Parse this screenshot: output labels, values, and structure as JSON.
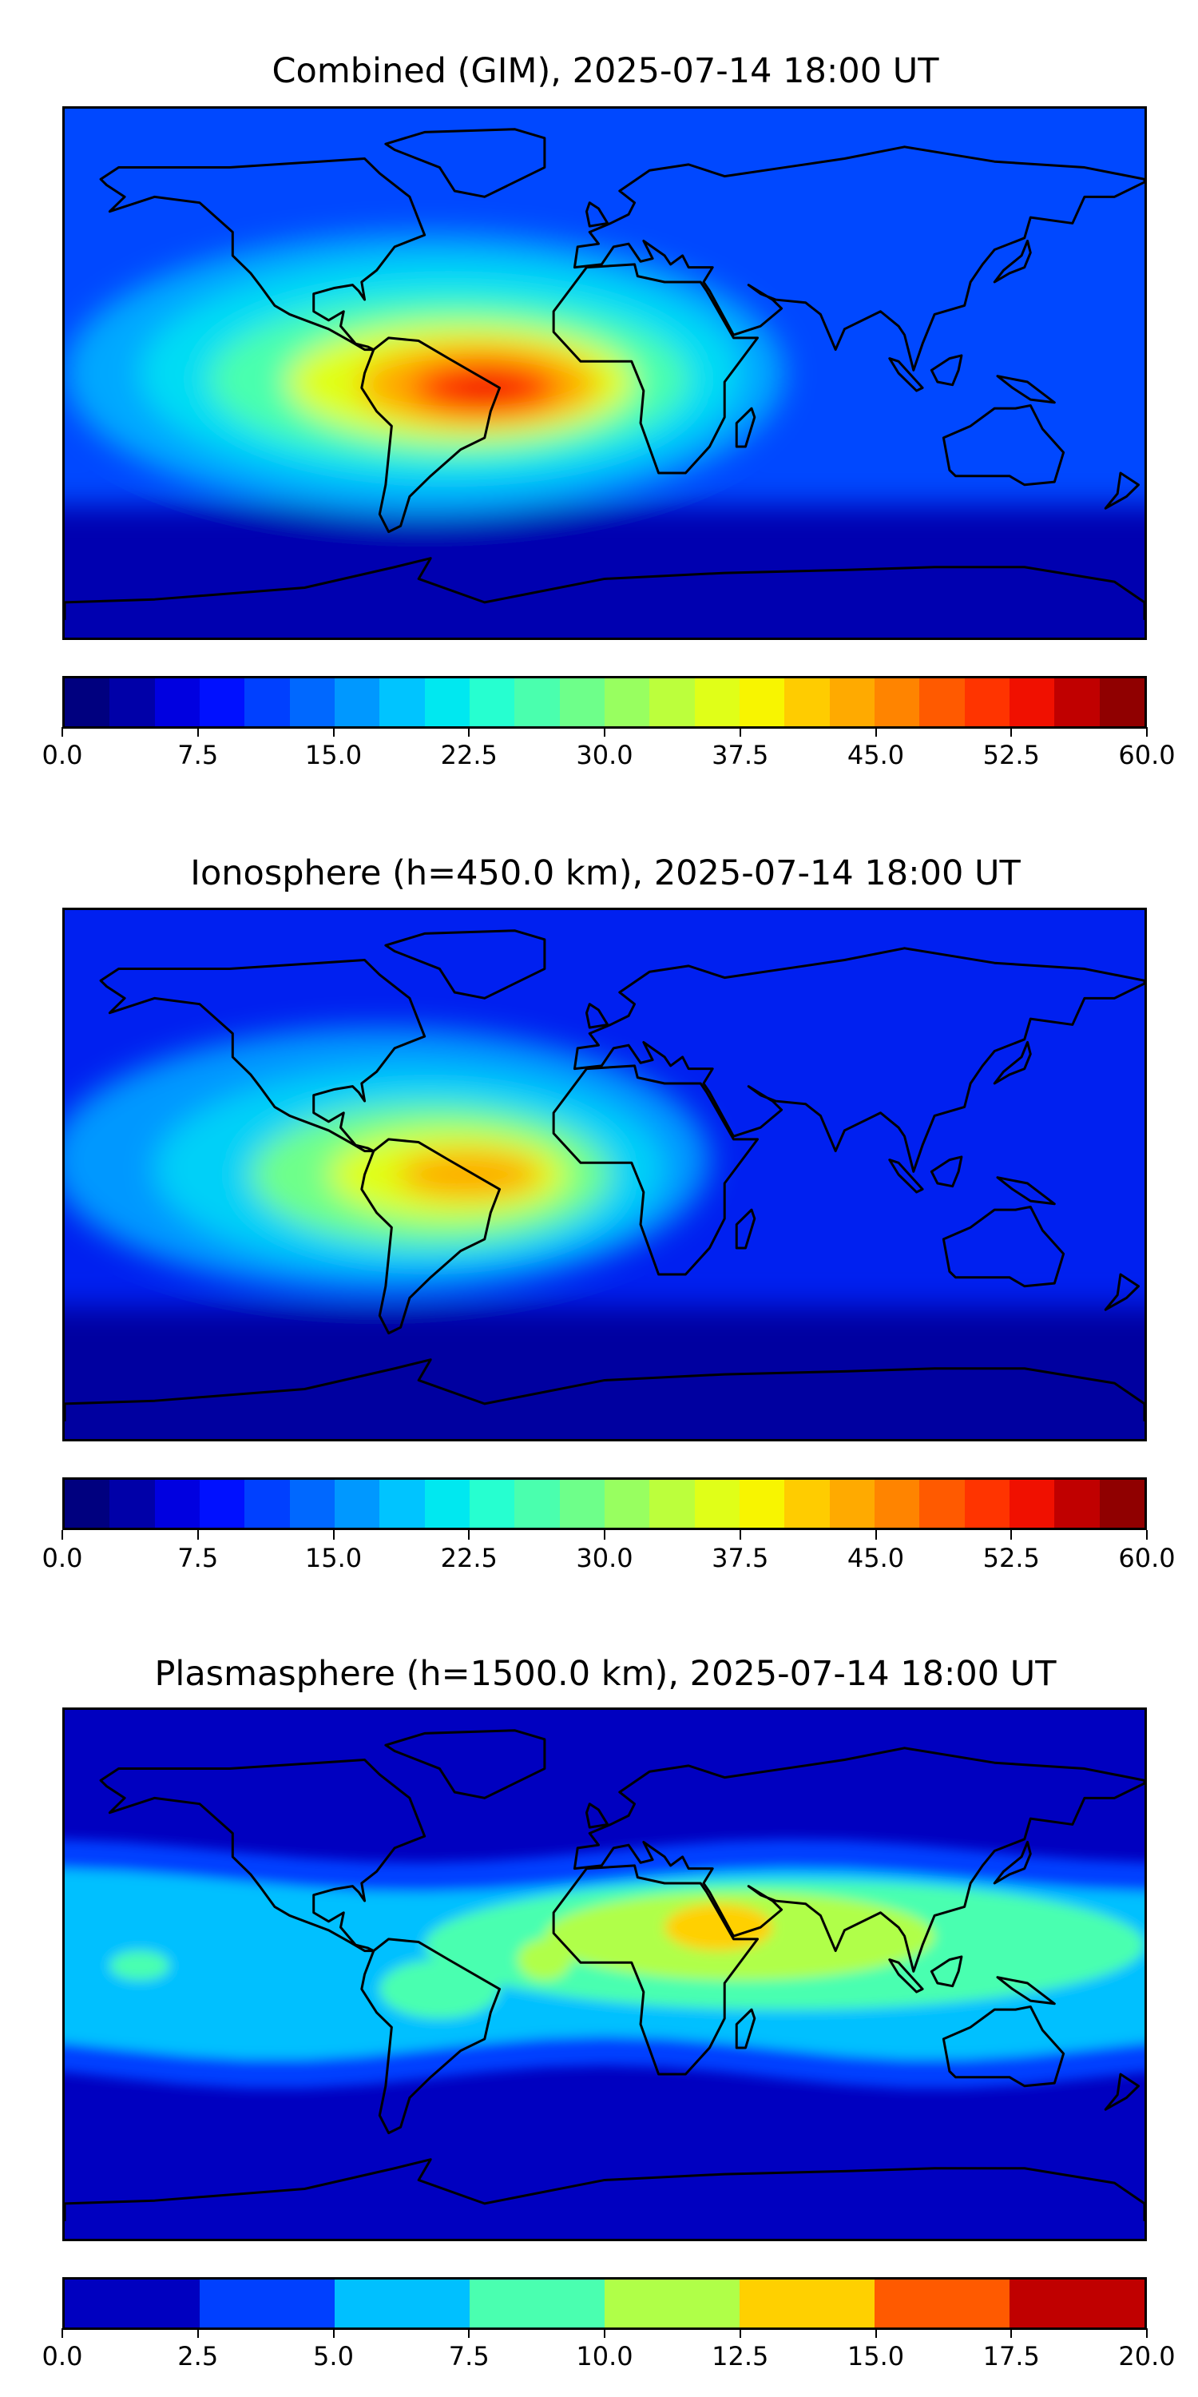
{
  "chart_data": [
    {
      "type": "heatmap",
      "title": "Combined (GIM), 2025-07-14 18:00 UT",
      "projection": "plate carree world map with coastlines",
      "lon_range": [
        -180,
        180
      ],
      "lat_range": [
        -90,
        90
      ],
      "colorbar": {
        "vmin": 0,
        "vmax": 60,
        "levels": 24,
        "ticks": [
          "0.0",
          "7.5",
          "15.0",
          "22.5",
          "30.0",
          "37.5",
          "45.0",
          "52.5",
          "60.0"
        ],
        "colors": [
          "#00007f",
          "#0000a8",
          "#0000e0",
          "#0010ff",
          "#0040ff",
          "#0068ff",
          "#0098ff",
          "#00c4ff",
          "#00e8f0",
          "#26ffd0",
          "#4affae",
          "#6eff8a",
          "#98ff60",
          "#bcff3c",
          "#e0ff18",
          "#f8f500",
          "#ffcc00",
          "#ffaa00",
          "#ff8400",
          "#ff5a00",
          "#ff3400",
          "#f01000",
          "#c00000",
          "#900000"
        ]
      },
      "field": {
        "peak_value_approx": 53,
        "peak_location": "northern Brazil / equatorial Atlantic",
        "background": "#0048ff",
        "south_band": "#0000b0",
        "blobs": [
          {
            "lon": -60,
            "lat": 0,
            "rx": 120,
            "ry": 48,
            "color": "#00a8ff"
          },
          {
            "lon": -55,
            "lat": 0,
            "rx": 100,
            "ry": 38,
            "color": "#00dcf4"
          },
          {
            "lon": -52,
            "lat": -2,
            "rx": 80,
            "ry": 28,
            "color": "#4affae"
          },
          {
            "lon": -48,
            "lat": -3,
            "rx": 58,
            "ry": 20,
            "color": "#e0ff18"
          },
          {
            "lon": -42,
            "lat": -4,
            "rx": 40,
            "ry": 14,
            "color": "#ffaa00"
          },
          {
            "lon": -40,
            "lat": -5,
            "rx": 24,
            "ry": 9,
            "color": "#ff3400"
          },
          {
            "lon": -40,
            "lat": -5,
            "rx": 10,
            "ry": 4,
            "color": "#f01000"
          }
        ]
      }
    },
    {
      "type": "heatmap",
      "title": "Ionosphere  (h=450.0 km), 2025-07-14 18:00 UT",
      "projection": "plate carree world map with coastlines",
      "lon_range": [
        -180,
        180
      ],
      "lat_range": [
        -90,
        90
      ],
      "colorbar": {
        "vmin": 0,
        "vmax": 60,
        "levels": 24,
        "ticks": [
          "0.0",
          "7.5",
          "15.0",
          "22.5",
          "30.0",
          "37.5",
          "45.0",
          "52.5",
          "60.0"
        ],
        "colors": [
          "#00007f",
          "#0000a8",
          "#0000e0",
          "#0010ff",
          "#0040ff",
          "#0068ff",
          "#0098ff",
          "#00c4ff",
          "#00e8f0",
          "#26ffd0",
          "#4affae",
          "#6eff8a",
          "#98ff60",
          "#bcff3c",
          "#e0ff18",
          "#f8f500",
          "#ffcc00",
          "#ffaa00",
          "#ff8400",
          "#ff5a00",
          "#ff3400",
          "#f01000",
          "#c00000",
          "#900000"
        ]
      },
      "field": {
        "peak_value_approx": 45,
        "peak_location": "northern Brazil",
        "background": "#0020f0",
        "south_band": "#0000a0",
        "blobs": [
          {
            "lon": -75,
            "lat": 5,
            "rx": 110,
            "ry": 45,
            "color": "#0098ff"
          },
          {
            "lon": -65,
            "lat": 2,
            "rx": 85,
            "ry": 34,
            "color": "#00d0f8"
          },
          {
            "lon": -58,
            "lat": 0,
            "rx": 60,
            "ry": 24,
            "color": "#6eff8a"
          },
          {
            "lon": -52,
            "lat": 0,
            "rx": 40,
            "ry": 15,
            "color": "#e0ff18"
          },
          {
            "lon": -45,
            "lat": 0,
            "rx": 24,
            "ry": 8,
            "color": "#ffaa00"
          }
        ]
      }
    },
    {
      "type": "heatmap",
      "title": "Plasmasphere (h=1500.0 km), 2025-07-14 18:00 UT",
      "projection": "plate carree world map with coastlines",
      "lon_range": [
        -180,
        180
      ],
      "lat_range": [
        -90,
        90
      ],
      "colorbar": {
        "vmin": 0,
        "vmax": 20,
        "levels": 8,
        "ticks": [
          "0.0",
          "2.5",
          "5.0",
          "7.5",
          "10.0",
          "12.5",
          "15.0",
          "17.5",
          "20.0"
        ],
        "colors": [
          "#0000c0",
          "#0040ff",
          "#00c0ff",
          "#4affb0",
          "#b0ff48",
          "#ffd000",
          "#ff5a00",
          "#c00000"
        ]
      },
      "field": {
        "peak_value_approx": 14,
        "peak_location": "Arabian Peninsula / northeast Africa",
        "background": "#0000c0",
        "bands": [
          {
            "lat_min": -35,
            "lat_max": 42,
            "color": "#0040ff"
          },
          {
            "lat_min": -25,
            "lat_max": 32,
            "color": "#00c0ff"
          }
        ],
        "blobs": [
          {
            "lon": 60,
            "lat": 10,
            "rx": 120,
            "ry": 22,
            "color": "#4affb0"
          },
          {
            "lon": -55,
            "lat": -5,
            "rx": 20,
            "ry": 10,
            "color": "#4affb0"
          },
          {
            "lon": -155,
            "lat": 3,
            "rx": 10,
            "ry": 5,
            "color": "#4affb0"
          },
          {
            "lon": 45,
            "lat": 13,
            "rx": 65,
            "ry": 15,
            "color": "#b0ff48"
          },
          {
            "lon": -20,
            "lat": 5,
            "rx": 9,
            "ry": 7,
            "color": "#b0ff48"
          },
          {
            "lon": 38,
            "lat": 16,
            "rx": 18,
            "ry": 8,
            "color": "#ffd000"
          }
        ]
      }
    }
  ]
}
